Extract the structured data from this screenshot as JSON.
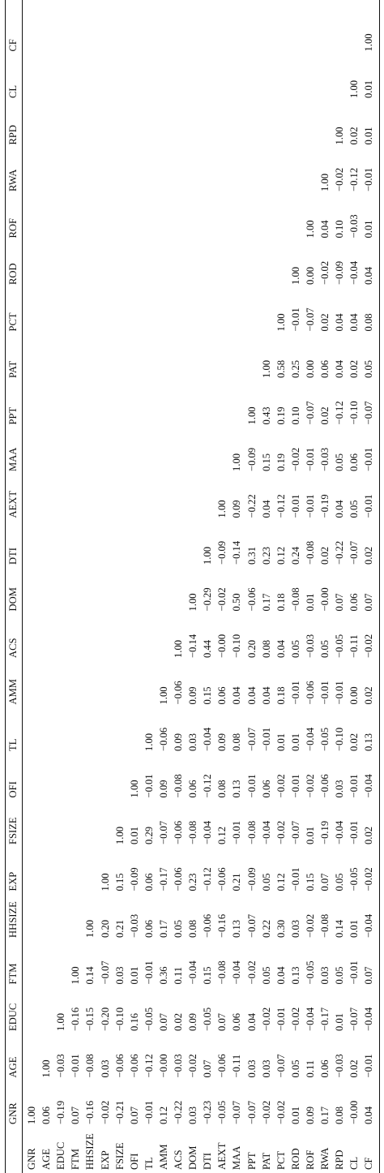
{
  "columns": [
    "GNR",
    "AGE",
    "EDUC",
    "FTM",
    "HHSIZE",
    "EXP",
    "FSIZE",
    "OFI",
    "TL",
    "AMM",
    "ACS",
    "DOM",
    "DTI",
    "AEXT",
    "MAA",
    "PPT",
    "PAT",
    "PCT",
    "ROD",
    "ROF",
    "RWA",
    "RPD",
    "CL",
    "CF"
  ],
  "rows": [
    {
      "label": "GNR",
      "values": [
        "1.00"
      ]
    },
    {
      "label": "AGE",
      "values": [
        "0.06",
        "1.00"
      ]
    },
    {
      "label": "EDUC",
      "values": [
        "−0.19",
        "−0.03",
        "1.00"
      ]
    },
    {
      "label": "FTM",
      "values": [
        "0.07",
        "−0.01",
        "−0.16",
        "1.00"
      ]
    },
    {
      "label": "HHSIZE",
      "values": [
        "−0.16",
        "−0.08",
        "−0.15",
        "0.14",
        "1.00"
      ]
    },
    {
      "label": "EXP",
      "values": [
        "−0.02",
        "0.03",
        "−0.20",
        "−0.07",
        "0.20",
        "1.00"
      ]
    },
    {
      "label": "FSIZE",
      "values": [
        "−0.21",
        "−0.06",
        "−0.10",
        "0.03",
        "0.21",
        "0.15",
        "1.00"
      ]
    },
    {
      "label": "OFI",
      "values": [
        "0.07",
        "−0.06",
        "0.16",
        "0.01",
        "−0.03",
        "−0.09",
        "0.01",
        "1.00"
      ]
    },
    {
      "label": "TL",
      "values": [
        "−0.01",
        "−0.12",
        "−0.05",
        "−0.01",
        "0.06",
        "0.06",
        "0.29",
        "−0.01",
        "1.00"
      ]
    },
    {
      "label": "AMM",
      "values": [
        "0.12",
        "−0.00",
        "0.07",
        "0.36",
        "0.17",
        "−0.17",
        "−0.07",
        "0.09",
        "−0.06",
        "1.00"
      ]
    },
    {
      "label": "ACS",
      "values": [
        "−0.22",
        "−0.03",
        "0.02",
        "0.11",
        "0.05",
        "−0.06",
        "−0.06",
        "−0.08",
        "0.09",
        "−0.06",
        "1.00"
      ]
    },
    {
      "label": "DOM",
      "values": [
        "0.03",
        "−0.02",
        "0.09",
        "−0.04",
        "0.08",
        "0.23",
        "−0.08",
        "0.06",
        "0.03",
        "0.09",
        "−0.14",
        "1.00"
      ]
    },
    {
      "label": "DTI",
      "values": [
        "−0.23",
        "0.07",
        "−0.05",
        "0.15",
        "−0.06",
        "−0.12",
        "−0.04",
        "−0.12",
        "−0.04",
        "0.15",
        "0.44",
        "−0.29",
        "1.00"
      ]
    },
    {
      "label": "AEXT",
      "values": [
        "−0.05",
        "−0.06",
        "0.07",
        "−0.08",
        "−0.16",
        "−0.06",
        "0.12",
        "0.08",
        "0.09",
        "0.06",
        "−0.00",
        "−0.02",
        "−0.09",
        "1.00"
      ]
    },
    {
      "label": "MAA",
      "values": [
        "−0.07",
        "−0.11",
        "0.06",
        "−0.04",
        "0.13",
        "0.21",
        "−0.01",
        "0.13",
        "0.08",
        "0.04",
        "−0.10",
        "0.50",
        "−0.14",
        "0.09",
        "1.00"
      ]
    },
    {
      "label": "PPT",
      "values": [
        "−0.07",
        "0.03",
        "0.04",
        "−0.02",
        "−0.07",
        "−0.09",
        "−0.08",
        "−0.01",
        "−0.07",
        "0.04",
        "0.20",
        "−0.06",
        "0.31",
        "−0.22",
        "−0.09",
        "1.00"
      ]
    },
    {
      "label": "PAT",
      "values": [
        "−0.02",
        "0.03",
        "−0.02",
        "0.05",
        "0.22",
        "0.05",
        "−0.04",
        "0.06",
        "−0.01",
        "0.04",
        "0.08",
        "0.17",
        "0.23",
        "0.04",
        "0.15",
        "0.43",
        "1.00"
      ]
    },
    {
      "label": "PCT",
      "values": [
        "−0.02",
        "−0.07",
        "−0.01",
        "0.04",
        "0.30",
        "0.12",
        "−0.02",
        "−0.02",
        "0.01",
        "0.18",
        "0.04",
        "0.18",
        "0.12",
        "−0.12",
        "0.19",
        "0.19",
        "0.58",
        "1.00"
      ]
    },
    {
      "label": "ROD",
      "values": [
        "0.01",
        "0.05",
        "−0.02",
        "0.13",
        "0.03",
        "−0.01",
        "−0.07",
        "−0.01",
        "0.01",
        "−0.01",
        "0.05",
        "−0.08",
        "0.24",
        "−0.01",
        "−0.02",
        "0.10",
        "0.25",
        "−0.01",
        "1.00"
      ]
    },
    {
      "label": "ROF",
      "values": [
        "0.09",
        "0.11",
        "−0.04",
        "−0.05",
        "−0.02",
        "0.15",
        "0.01",
        "−0.02",
        "−0.04",
        "−0.06",
        "−0.03",
        "0.01",
        "−0.08",
        "−0.01",
        "−0.01",
        "−0.07",
        "0.00",
        "−0.07",
        "0.00",
        "1.00"
      ]
    },
    {
      "label": "RWA",
      "values": [
        "0.17",
        "0.06",
        "−0.17",
        "0.03",
        "−0.08",
        "0.07",
        "−0.19",
        "−0.06",
        "−0.05",
        "−0.01",
        "0.05",
        "−0.00",
        "0.02",
        "−0.19",
        "−0.03",
        "0.02",
        "0.06",
        "0.02",
        "−0.02",
        "0.04",
        "1.00"
      ]
    },
    {
      "label": "RPD",
      "values": [
        "0.08",
        "−0.03",
        "0.01",
        "0.05",
        "0.14",
        "0.05",
        "−0.04",
        "0.03",
        "−0.10",
        "−0.01",
        "−0.05",
        "0.07",
        "−0.22",
        "0.04",
        "0.05",
        "−0.12",
        "0.04",
        "0.04",
        "−0.09",
        "0.10",
        "−0.02",
        "1.00"
      ]
    },
    {
      "label": "CL",
      "values": [
        "−0.00",
        "0.02",
        "−0.07",
        "−0.01",
        "0.01",
        "−0.05",
        "−0.01",
        "−0.01",
        "0.02",
        "0.00",
        "−0.11",
        "0.06",
        "−0.07",
        "0.05",
        "0.06",
        "−0.10",
        "0.02",
        "0.04",
        "−0.04",
        "−0.03",
        "−0.12",
        "0.02",
        "1.00"
      ]
    },
    {
      "label": "CF",
      "values": [
        "0.04",
        "−0.01",
        "−0.04",
        "0.07",
        "−0.04",
        "−0.02",
        "0.02",
        "−0.04",
        "0.13",
        "0.02",
        "−0.02",
        "0.07",
        "0.02",
        "−0.01",
        "−0.01",
        "−0.07",
        "0.05",
        "0.08",
        "0.04",
        "0.01",
        "−0.01",
        "0.01",
        "0.01",
        "1.00"
      ]
    }
  ]
}
